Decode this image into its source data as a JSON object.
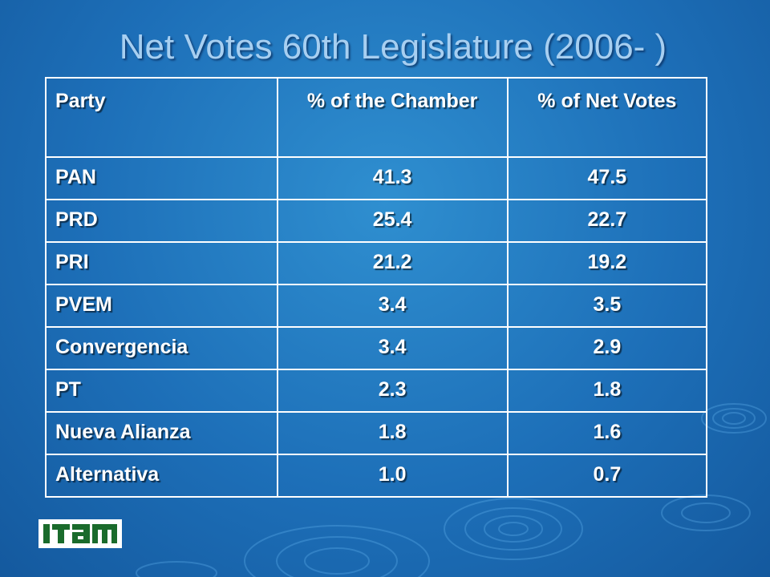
{
  "slide": {
    "title": "Net Votes 60th Legislature (2006- )",
    "background_color": "#1d6fb8",
    "title_color": "#a7cff1"
  },
  "table": {
    "headers": [
      "Party",
      "% of the Chamber",
      "% of Net Votes"
    ],
    "rows": [
      [
        "PAN",
        "41.3",
        "47.5"
      ],
      [
        "PRD",
        "25.4",
        "22.7"
      ],
      [
        "PRI",
        "21.2",
        "19.2"
      ],
      [
        "PVEM",
        "3.4",
        "3.5"
      ],
      [
        "Convergencia",
        "3.4",
        "2.9"
      ],
      [
        "PT",
        "2.3",
        "1.8"
      ],
      [
        "Nueva Alianza",
        "1.8",
        "1.6"
      ],
      [
        "Alternativa",
        "1.0",
        "0.7"
      ]
    ]
  },
  "logo": {
    "text": "ITAM",
    "color": "#1a6b2c"
  }
}
